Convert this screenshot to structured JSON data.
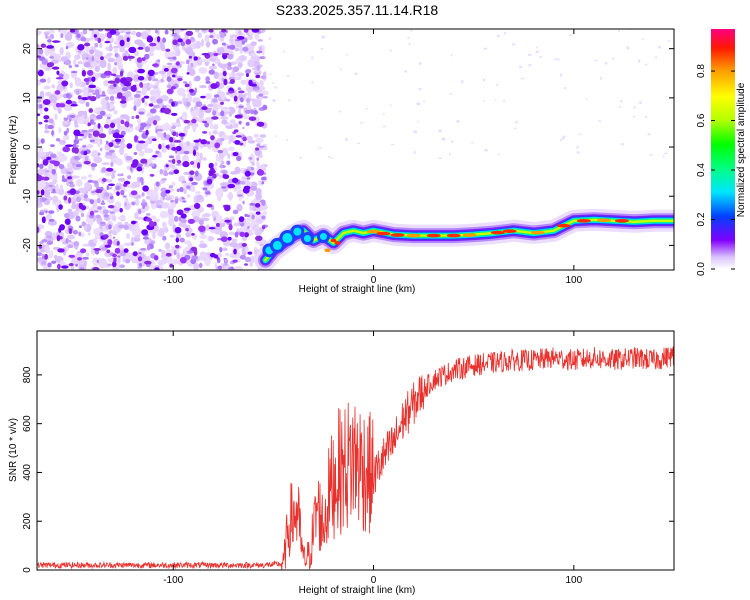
{
  "title": "S233.2025.357.11.14.R18",
  "chart_data": [
    {
      "type": "heatmap",
      "xlabel": "Height of straight line (km)",
      "ylabel": "Frequency (Hz)",
      "xlim": [
        -168,
        150
      ],
      "ylim": [
        -25,
        24
      ],
      "xticks": [
        -100,
        0,
        100
      ],
      "xtick_labels": [
        "-100",
        "0",
        "100"
      ],
      "yticks": [
        -20,
        -10,
        0,
        10,
        20
      ],
      "ytick_labels": [
        "-20",
        "-10",
        "0",
        "10",
        "20"
      ],
      "noise_region_x": [
        -168,
        -54
      ],
      "ridge": {
        "x": [
          -54,
          -50,
          -45,
          -40,
          -35,
          -30,
          -25,
          -20,
          -15,
          -10,
          -5,
          0,
          10,
          20,
          30,
          40,
          50,
          60,
          70,
          80,
          90,
          95,
          100,
          110,
          120,
          130,
          140,
          150
        ],
        "y": [
          -23,
          -21,
          -19.5,
          -18,
          -17,
          -19,
          -18,
          -19.5,
          -17.5,
          -17,
          -17.5,
          -17,
          -17.8,
          -18,
          -18,
          -18,
          -17.8,
          -17.5,
          -17,
          -17.5,
          -17,
          -16,
          -15,
          -14.8,
          -15,
          -15.2,
          -15,
          -15
        ]
      },
      "colorbar": {
        "label": "Normalized spectral amplitude",
        "range": [
          0,
          0.97
        ],
        "ticks": [
          0.0,
          0.2,
          0.4,
          0.6,
          0.8
        ],
        "tick_labels": [
          "0.0",
          "0.2",
          "0.4",
          "0.6",
          "0.8"
        ]
      }
    },
    {
      "type": "line",
      "xlabel": "Height of straight line (km)",
      "ylabel": "SNR (10 * v/v)",
      "xlim": [
        -168,
        150
      ],
      "ylim": [
        0,
        980
      ],
      "xticks": [
        -100,
        0,
        100
      ],
      "xtick_labels": [
        "-100",
        "0",
        "100"
      ],
      "yticks": [
        0,
        200,
        400,
        600,
        800
      ],
      "ytick_labels": [
        "0",
        "200",
        "400",
        "600",
        "800"
      ],
      "color": "#e8302c",
      "series": [
        {
          "name": "SNR",
          "x": [
            -168,
            -140,
            -110,
            -80,
            -55,
            -45,
            -42,
            -38,
            -35,
            -32,
            -28,
            -25,
            -22,
            -18,
            -14,
            -10,
            -5,
            0,
            5,
            10,
            15,
            20,
            25,
            30,
            40,
            50,
            60,
            70,
            80,
            90,
            100,
            110,
            120,
            130,
            140,
            150
          ],
          "y": [
            20,
            20,
            20,
            20,
            20,
            25,
            200,
            240,
            40,
            60,
            260,
            180,
            320,
            400,
            420,
            460,
            420,
            380,
            460,
            520,
            620,
            680,
            740,
            780,
            820,
            840,
            850,
            860,
            860,
            870,
            860,
            870,
            860,
            870,
            860,
            880
          ]
        }
      ]
    }
  ]
}
